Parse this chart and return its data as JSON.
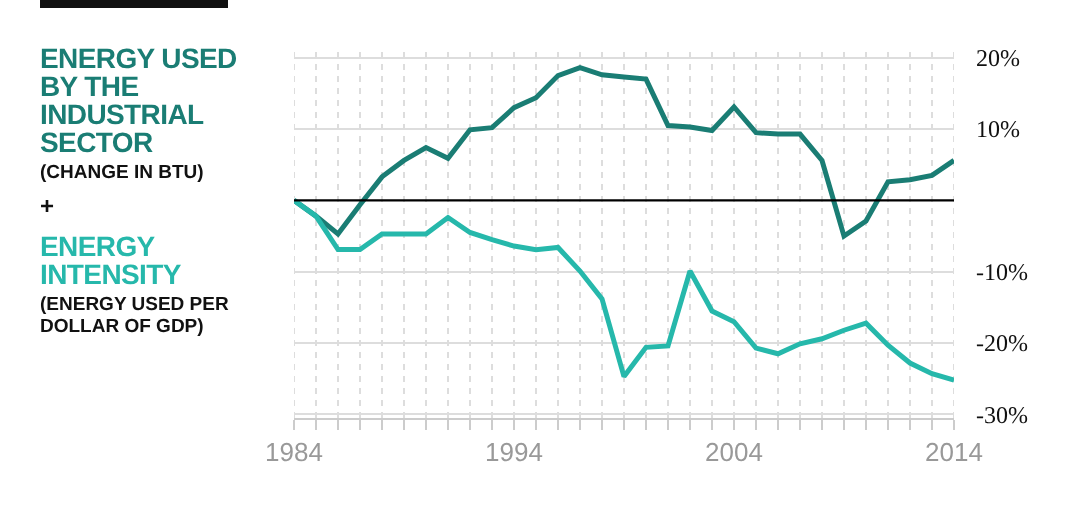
{
  "chart_data": {
    "type": "line",
    "x": [
      1984,
      1985,
      1986,
      1987,
      1988,
      1989,
      1990,
      1991,
      1992,
      1993,
      1994,
      1995,
      1996,
      1997,
      1998,
      1999,
      2000,
      2001,
      2002,
      2003,
      2004,
      2005,
      2006,
      2007,
      2008,
      2009,
      2010,
      2011,
      2012,
      2013,
      2014
    ],
    "series": [
      {
        "name": "ENERGY USED BY THE INDUSTRIAL SECTOR",
        "color": "#1a7d74",
        "values": [
          0,
          -2.2,
          -4.7,
          -0.6,
          3.3,
          5.6,
          7.4,
          5.9,
          9.9,
          10.2,
          13.0,
          14.4,
          17.5,
          18.6,
          17.6,
          17.3,
          17.0,
          10.5,
          10.3,
          9.8,
          13.1,
          9.5,
          9.3,
          9.3,
          5.6,
          -5.0,
          -2.9,
          2.6,
          2.9,
          3.5,
          5.6
        ]
      },
      {
        "name": "ENERGY INTENSITY",
        "color": "#26b8ab",
        "values": [
          0,
          -2.2,
          -6.9,
          -6.9,
          -4.7,
          -4.7,
          -4.7,
          -2.4,
          -4.5,
          -5.5,
          -6.4,
          -6.9,
          -6.6,
          -9.9,
          -13.8,
          -24.7,
          -20.6,
          -20.4,
          -9.9,
          -15.5,
          -17.0,
          -20.7,
          -21.5,
          -20.1,
          -19.4,
          -18.2,
          -17.2,
          -20.3,
          -22.8,
          -24.3,
          -25.2
        ]
      }
    ],
    "annotations": [
      "(CHANGE IN BTU)",
      "+",
      "(ENERGY USED PER DOLLAR OF GDP)"
    ],
    "xlim": [
      1984,
      2014
    ],
    "xticks": [
      1984,
      {
        "value": 1985,
        "label": null
      },
      {
        "value": 1986,
        "label": null
      },
      {
        "value": 1987,
        "label": null
      },
      {
        "value": 1988,
        "label": null
      },
      {
        "value": 1989,
        "label": null
      },
      {
        "value": 1990,
        "label": null
      },
      {
        "value": 1991,
        "label": null
      },
      {
        "value": 1992,
        "label": null
      },
      {
        "value": 1993,
        "label": null
      },
      1994,
      {
        "value": 1995,
        "label": null
      },
      {
        "value": 1996,
        "label": null
      },
      {
        "value": 1997,
        "label": null
      },
      {
        "value": 1998,
        "label": null
      },
      {
        "value": 1999,
        "label": null
      },
      {
        "value": 2000,
        "label": null
      },
      {
        "value": 2001,
        "label": null
      },
      {
        "value": 2002,
        "label": null
      },
      {
        "value": 2003,
        "label": null
      },
      2004,
      {
        "value": 2005,
        "label": null
      },
      {
        "value": 2006,
        "label": null
      },
      {
        "value": 2007,
        "label": null
      },
      {
        "value": 2008,
        "label": null
      },
      {
        "value": 2009,
        "label": null
      },
      {
        "value": 2010,
        "label": null
      },
      {
        "value": 2011,
        "label": null
      },
      {
        "value": 2012,
        "label": null
      },
      {
        "value": 2013,
        "label": null
      },
      2014
    ],
    "ylim": [
      -30.5,
      20.8
    ],
    "yticks": [
      {
        "value": 20,
        "label": "20%"
      },
      {
        "value": 10,
        "label": "10%"
      },
      {
        "value": -10,
        "label": "-10%"
      },
      {
        "value": -20,
        "label": "-20%"
      },
      {
        "value": -30,
        "label": "-30%"
      }
    ],
    "ref_lines": [
      {
        "axis": "y",
        "value": 0,
        "color": "#000000"
      }
    ],
    "grid": true,
    "legend": "left",
    "marker": "none",
    "line_style": "solid"
  }
}
